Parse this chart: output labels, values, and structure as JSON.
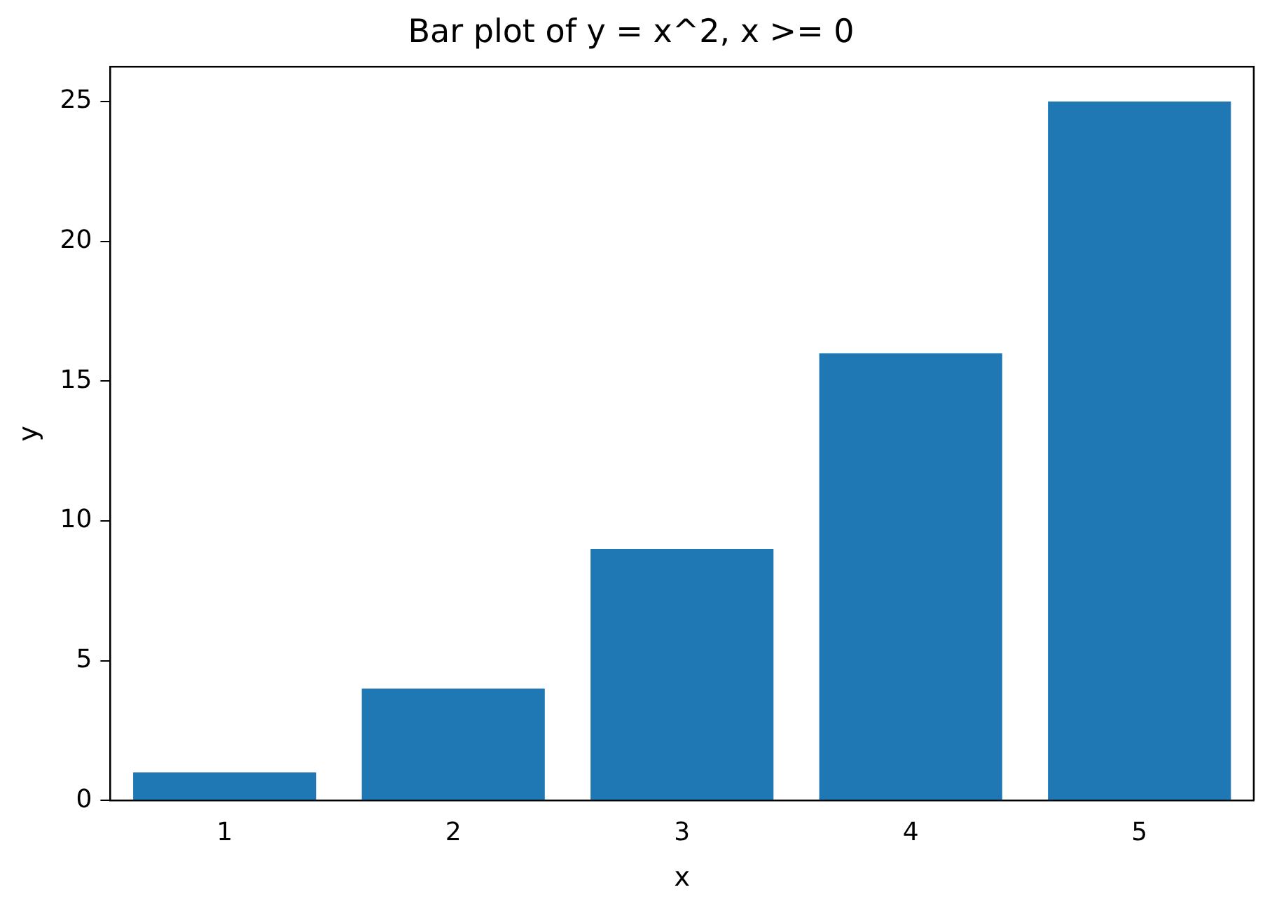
{
  "chart_data": {
    "type": "bar",
    "title": "Bar plot of y = x^2, x >= 0",
    "xlabel": "x",
    "ylabel": "y",
    "categories": [
      "1",
      "2",
      "3",
      "4",
      "5"
    ],
    "values": [
      1,
      4,
      9,
      16,
      25
    ],
    "color": "#1f77b4",
    "ylim": [
      0,
      26.25
    ],
    "yticks": [
      0,
      5,
      10,
      15,
      20,
      25
    ],
    "grid": false,
    "legend": false
  }
}
